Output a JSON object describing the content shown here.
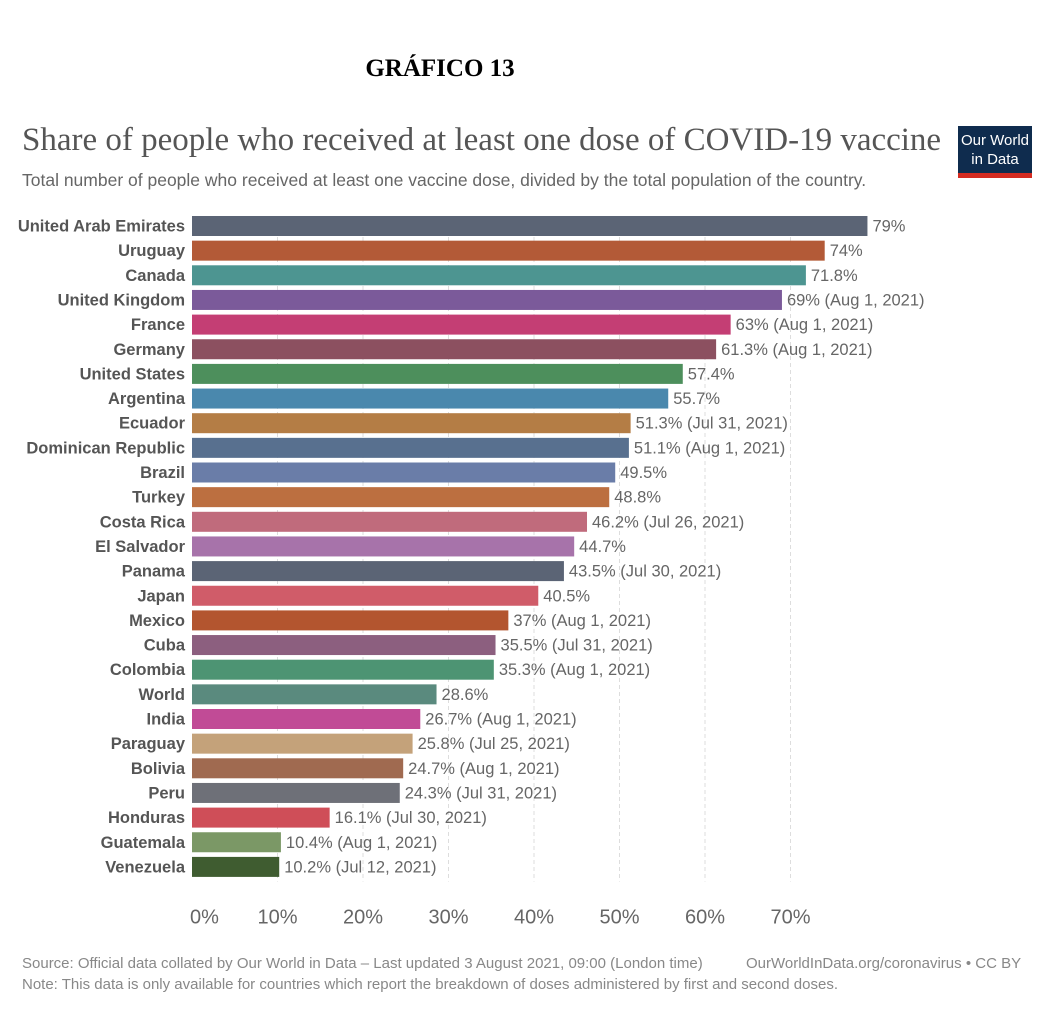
{
  "header": {
    "figure_label": "GRÁFICO 13",
    "logo_line1": "Our World",
    "logo_line2": "in Data"
  },
  "footer": {
    "source": "Source: Official data collated by Our World in Data – Last updated 3 August 2021, 09:00 (London time)",
    "source_link": "OurWorldInData.org/coronavirus • CC BY",
    "note": "Note: This data is only available for countries which report the breakdown of doses administered by first and second doses."
  },
  "chart_data": {
    "type": "bar",
    "orientation": "horizontal",
    "title": "Share of people who received at least one dose of COVID-19 vaccine",
    "subtitle": "Total number of people who received at least one vaccine dose, divided by the total population of the country.",
    "xlim": [
      0,
      79
    ],
    "x_ticks": [
      0,
      10,
      20,
      30,
      40,
      50,
      60,
      70
    ],
    "x_tick_labels": [
      "0%",
      "10%",
      "20%",
      "30%",
      "40%",
      "50%",
      "60%",
      "70%"
    ],
    "grid": "vertical dashed",
    "bars": [
      {
        "category": "United Arab Emirates",
        "value": 79,
        "label": "79%",
        "color": "#5b6475"
      },
      {
        "category": "Uruguay",
        "value": 74,
        "label": "74%",
        "color": "#b35a37"
      },
      {
        "category": "Canada",
        "value": 71.8,
        "label": "71.8%",
        "color": "#4d9591"
      },
      {
        "category": "United Kingdom",
        "value": 69,
        "label": "69% (Aug 1, 2021)",
        "color": "#7b5a9a"
      },
      {
        "category": "France",
        "value": 63,
        "label": "63% (Aug 1, 2021)",
        "color": "#c43e74"
      },
      {
        "category": "Germany",
        "value": 61.3,
        "label": "61.3% (Aug 1, 2021)",
        "color": "#8c5060"
      },
      {
        "category": "United States",
        "value": 57.4,
        "label": "57.4%",
        "color": "#4d8f5c"
      },
      {
        "category": "Argentina",
        "value": 55.7,
        "label": "55.7%",
        "color": "#4a88ad"
      },
      {
        "category": "Ecuador",
        "value": 51.3,
        "label": "51.3% (Jul 31, 2021)",
        "color": "#b47d45"
      },
      {
        "category": "Dominican Republic",
        "value": 51.1,
        "label": "51.1% (Aug 1, 2021)",
        "color": "#58708f"
      },
      {
        "category": "Brazil",
        "value": 49.5,
        "label": "49.5%",
        "color": "#6a7da8"
      },
      {
        "category": "Turkey",
        "value": 48.8,
        "label": "48.8%",
        "color": "#bc6f40"
      },
      {
        "category": "Costa Rica",
        "value": 46.2,
        "label": "46.2% (Jul 26, 2021)",
        "color": "#c06b7c"
      },
      {
        "category": "El Salvador",
        "value": 44.7,
        "label": "44.7%",
        "color": "#a773aa"
      },
      {
        "category": "Panama",
        "value": 43.5,
        "label": "43.5% (Jul 30, 2021)",
        "color": "#5b6475"
      },
      {
        "category": "Japan",
        "value": 40.5,
        "label": "40.5%",
        "color": "#d05c69"
      },
      {
        "category": "Mexico",
        "value": 37,
        "label": "37% (Aug 1, 2021)",
        "color": "#b3552f"
      },
      {
        "category": "Cuba",
        "value": 35.5,
        "label": "35.5% (Jul 31, 2021)",
        "color": "#8c5f7f"
      },
      {
        "category": "Colombia",
        "value": 35.3,
        "label": "35.3% (Aug 1, 2021)",
        "color": "#4d9473"
      },
      {
        "category": "World",
        "value": 28.6,
        "label": "28.6%",
        "color": "#5a8a7e"
      },
      {
        "category": "India",
        "value": 26.7,
        "label": "26.7% (Aug 1, 2021)",
        "color": "#c14b96"
      },
      {
        "category": "Paraguay",
        "value": 25.8,
        "label": "25.8% (Jul 25, 2021)",
        "color": "#c4a27a"
      },
      {
        "category": "Bolivia",
        "value": 24.7,
        "label": "24.7% (Aug 1, 2021)",
        "color": "#a06a50"
      },
      {
        "category": "Peru",
        "value": 24.3,
        "label": "24.3% (Jul 31, 2021)",
        "color": "#6e7078"
      },
      {
        "category": "Honduras",
        "value": 16.1,
        "label": "16.1% (Jul 30, 2021)",
        "color": "#cf4e58"
      },
      {
        "category": "Guatemala",
        "value": 10.4,
        "label": "10.4% (Aug 1, 2021)",
        "color": "#7b9866"
      },
      {
        "category": "Venezuela",
        "value": 10.2,
        "label": "10.2% (Jul 12, 2021)",
        "color": "#3f5c30"
      }
    ]
  }
}
